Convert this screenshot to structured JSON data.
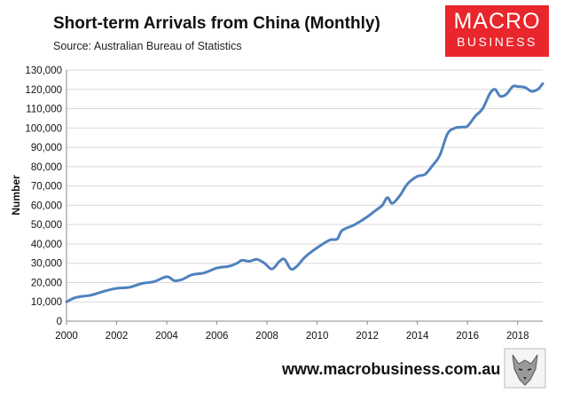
{
  "header": {
    "title": "Short-term Arrivals from China (Monthly)",
    "source": "Source: Australian Bureau of Statistics"
  },
  "logo": {
    "line1": "MACRO",
    "line2": "BUSINESS",
    "color": "#e8262c"
  },
  "footer": {
    "url": "www.macrobusiness.com.au"
  },
  "chart_data": {
    "type": "line",
    "title": "Short-term Arrivals from China (Monthly)",
    "xlabel": "",
    "ylabel": "Number",
    "xlim": [
      2000,
      2019
    ],
    "ylim": [
      0,
      130000
    ],
    "x_ticks": [
      "2000",
      "2002",
      "2004",
      "2006",
      "2008",
      "2010",
      "2012",
      "2014",
      "2016",
      "2018"
    ],
    "y_ticks": [
      "0",
      "10,000",
      "20,000",
      "30,000",
      "40,000",
      "50,000",
      "60,000",
      "70,000",
      "80,000",
      "90,000",
      "100,000",
      "110,000",
      "120,000",
      "130,000"
    ],
    "grid": "horizontal",
    "legend": "none",
    "line_color": "#4f81bd",
    "series": [
      {
        "x": [
          2000.0,
          2000.3,
          2000.6,
          2001.0,
          2001.5,
          2002.0,
          2002.5,
          2003.0,
          2003.5,
          2004.0,
          2004.3,
          2004.6,
          2005.0,
          2005.5,
          2006.0,
          2006.5,
          2006.8,
          2007.0,
          2007.3,
          2007.6,
          2007.9,
          2008.2,
          2008.5,
          2008.7,
          2008.95,
          2009.2,
          2009.5,
          2010.0,
          2010.5,
          2010.8,
          2011.0,
          2011.5,
          2012.0,
          2012.3,
          2012.6,
          2012.8,
          2013.0,
          2013.3,
          2013.6,
          2014.0,
          2014.3,
          2014.6,
          2014.9,
          2015.2,
          2015.5,
          2015.8,
          2016.0,
          2016.3,
          2016.6,
          2016.9,
          2017.1,
          2017.3,
          2017.55,
          2017.8,
          2018.0,
          2018.3,
          2018.55,
          2018.8,
          2019.0
        ],
        "y": [
          10000,
          12000,
          12800,
          13500,
          15500,
          17000,
          17500,
          19500,
          20500,
          23000,
          21000,
          21500,
          24000,
          25000,
          27500,
          28500,
          30000,
          31500,
          31000,
          32000,
          30000,
          27000,
          31000,
          32000,
          27000,
          28500,
          33000,
          38000,
          42000,
          42500,
          47000,
          50000,
          54000,
          57000,
          60000,
          64000,
          61000,
          65000,
          71000,
          75000,
          76000,
          80500,
          86000,
          97000,
          100000,
          100500,
          101000,
          106000,
          110000,
          118000,
          120000,
          116500,
          117500,
          121500,
          121500,
          121000,
          119000,
          120000,
          123000
        ]
      }
    ]
  }
}
